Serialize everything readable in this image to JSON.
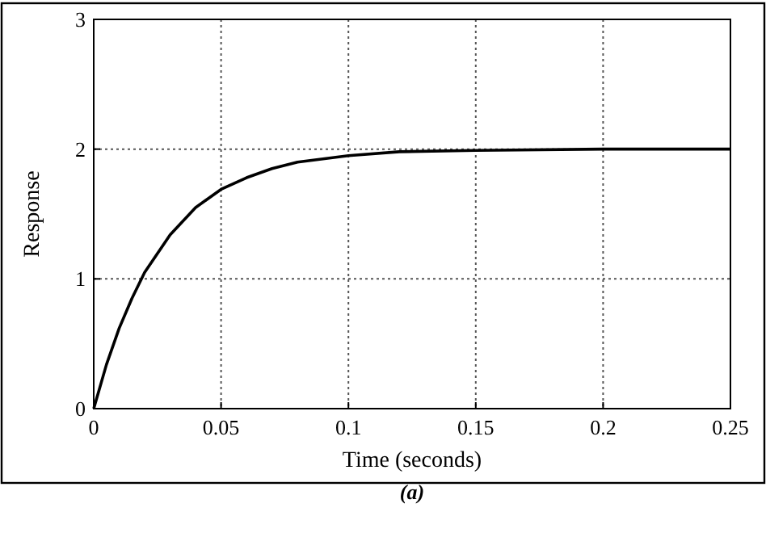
{
  "chart_data": {
    "type": "line",
    "xlabel": "Time (seconds)",
    "ylabel": "Response",
    "annotations": [
      "(a)"
    ],
    "x": [
      0,
      0.005,
      0.01,
      0.015,
      0.02,
      0.03,
      0.04,
      0.05,
      0.06,
      0.07,
      0.08,
      0.1,
      0.12,
      0.15,
      0.2,
      0.25
    ],
    "series": [
      {
        "color": "#000000",
        "values": [
          0,
          0.34,
          0.62,
          0.85,
          1.05,
          1.34,
          1.55,
          1.69,
          1.78,
          1.85,
          1.9,
          1.95,
          1.98,
          1.99,
          2,
          2
        ]
      }
    ],
    "xlim": [
      0,
      0.25
    ],
    "xticks": [
      0,
      0.05,
      0.1,
      0.15,
      0.2,
      0.25
    ],
    "ylim": [
      0,
      3
    ],
    "yticks": [
      0,
      1,
      2,
      3
    ],
    "grid": true,
    "line_style": "solid",
    "marker": "none"
  }
}
